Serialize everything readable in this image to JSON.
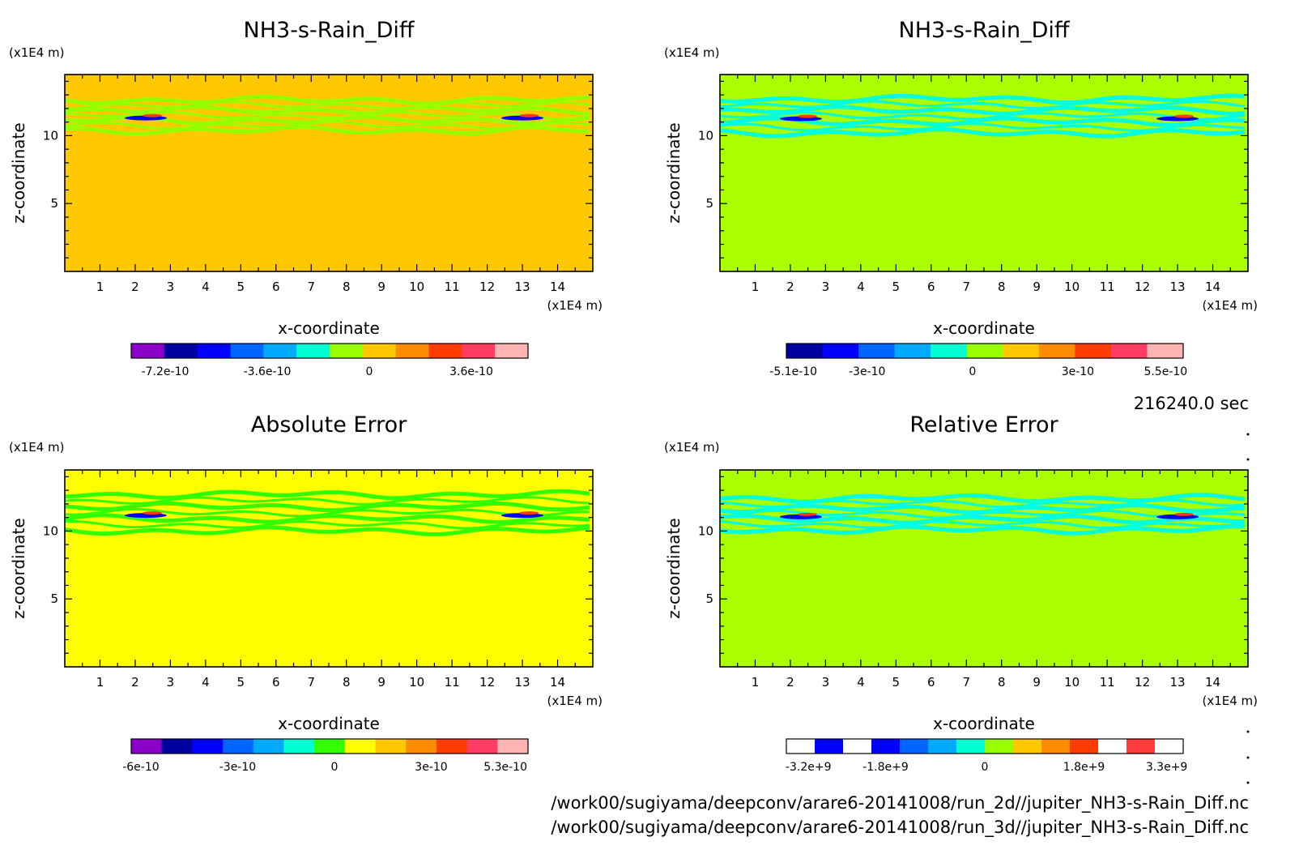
{
  "time_label": "216240.0 sec",
  "footer_lines": [
    "/work00/sugiyama/deepconv/arare6-20141008/run_2d//jupiter_NH3-s-Rain_Diff.nc",
    "/work00/sugiyama/deepconv/arare6-20141008/run_3d//jupiter_NH3-s-Rain_Diff.nc"
  ],
  "chart_data": [
    {
      "type": "heatmap",
      "title": "NH3-s-Rain_Diff",
      "xlabel": "x-coordinate",
      "ylabel": "z-coordinate",
      "x_unit": "(x1E4 m)",
      "z_unit": "(x1E4 m)",
      "xlim": [
        0,
        15
      ],
      "ylim": [
        0,
        14.5
      ],
      "x_ticks": [
        "1",
        "2",
        "3",
        "4",
        "5",
        "6",
        "7",
        "8",
        "9",
        "10",
        "11",
        "12",
        "13",
        "14"
      ],
      "z_ticks": [
        "5",
        "10"
      ],
      "background_color": "#ffc800",
      "band_color": "#96ff00",
      "band_z_range": [
        10.2,
        12.8
      ],
      "colorbar": {
        "colors": [
          "#8a00c8",
          "#0000a0",
          "#0000ff",
          "#0064ff",
          "#00aaff",
          "#00ffd2",
          "#96ff00",
          "#ffc800",
          "#ff8c00",
          "#ff3c00",
          "#ff3c64",
          "#ffb4b4"
        ],
        "tick_labels": [
          "-7.2e-10",
          "-3.6e-10",
          "0",
          "3.6e-10"
        ],
        "tick_values": [
          -7.2e-10,
          -3.6e-10,
          0,
          3.6e-10
        ],
        "range": [
          -8.4e-10,
          5.6e-10
        ]
      }
    },
    {
      "type": "heatmap",
      "title": "NH3-s-Rain_Diff",
      "xlabel": "x-coordinate",
      "ylabel": "z-coordinate",
      "x_unit": "(x1E4 m)",
      "z_unit": "(x1E4 m)",
      "xlim": [
        0,
        15
      ],
      "ylim": [
        0,
        14.5
      ],
      "x_ticks": [
        "1",
        "2",
        "3",
        "4",
        "5",
        "6",
        "7",
        "8",
        "9",
        "10",
        "11",
        "12",
        "13",
        "14"
      ],
      "z_ticks": [
        "5",
        "10"
      ],
      "background_color": "#aaff00",
      "band_color": "#00ffdc",
      "band_z_range": [
        10.0,
        12.9
      ],
      "colorbar": {
        "colors": [
          "#0000a0",
          "#0000ff",
          "#0064ff",
          "#00aaff",
          "#00ffd2",
          "#96ff00",
          "#ffc800",
          "#ff8c00",
          "#ff3c00",
          "#ff3c64",
          "#ffb4b4"
        ],
        "tick_labels": [
          "-5.1e-10",
          "-3e-10",
          "0",
          "3e-10",
          "5.5e-10"
        ],
        "tick_values": [
          -5.1e-10,
          -3e-10,
          0,
          3e-10,
          5.5e-10
        ],
        "range": [
          -5.3e-10,
          6e-10
        ]
      }
    },
    {
      "type": "heatmap",
      "title": "Absolute Error",
      "xlabel": "x-coordinate",
      "ylabel": "z-coordinate",
      "x_unit": "(x1E4 m)",
      "z_unit": "(x1E4 m)",
      "xlim": [
        0,
        15
      ],
      "ylim": [
        0,
        14.5
      ],
      "x_ticks": [
        "1",
        "2",
        "3",
        "4",
        "5",
        "6",
        "7",
        "8",
        "9",
        "10",
        "11",
        "12",
        "13",
        "14"
      ],
      "z_ticks": [
        "5",
        "10"
      ],
      "background_color": "#ffff00",
      "band_color": "#32ff00",
      "band_z_range": [
        9.8,
        12.9
      ],
      "colorbar": {
        "colors": [
          "#8a00c8",
          "#0000a0",
          "#0000ff",
          "#0064ff",
          "#00aaff",
          "#00ffd2",
          "#32ff00",
          "#ffff00",
          "#ffc800",
          "#ff8c00",
          "#ff3c00",
          "#ff3c64",
          "#ffb4b4"
        ],
        "tick_labels": [
          "-6e-10",
          "-3e-10",
          "0",
          "3e-10",
          "5.3e-10"
        ],
        "tick_values": [
          -6e-10,
          -3e-10,
          0,
          3e-10,
          5.3e-10
        ],
        "range": [
          -6.3e-10,
          6e-10
        ]
      }
    },
    {
      "type": "heatmap",
      "title": "Relative Error",
      "xlabel": "x-coordinate",
      "ylabel": "z-coordinate",
      "x_unit": "(x1E4 m)",
      "z_unit": "(x1E4 m)",
      "xlim": [
        0,
        15
      ],
      "ylim": [
        0,
        14.5
      ],
      "x_ticks": [
        "1",
        "2",
        "3",
        "4",
        "5",
        "6",
        "7",
        "8",
        "9",
        "10",
        "11",
        "12",
        "13",
        "14"
      ],
      "z_ticks": [
        "5",
        "10"
      ],
      "background_color": "#aaff00",
      "band_color": "#00ffdc",
      "band_z_range": [
        9.9,
        12.6
      ],
      "colorbar": {
        "colors": [
          "#ffffff",
          "#0000ff",
          "#ffffff",
          "#0000ff",
          "#0064ff",
          "#00aaff",
          "#00ffd2",
          "#96ff00",
          "#ffc800",
          "#ff8c00",
          "#ff3c00",
          "#ffffff",
          "#ff3c3c",
          "#ffffff"
        ],
        "tick_labels": [
          "-3.2e+9",
          "-1.8e+9",
          "0",
          "1.8e+9",
          "3.3e+9"
        ],
        "tick_values": [
          -3200000000.0,
          -1800000000.0,
          0,
          1800000000.0,
          3300000000.0
        ],
        "range": [
          -3600000000.0,
          3600000000.0
        ]
      }
    }
  ]
}
